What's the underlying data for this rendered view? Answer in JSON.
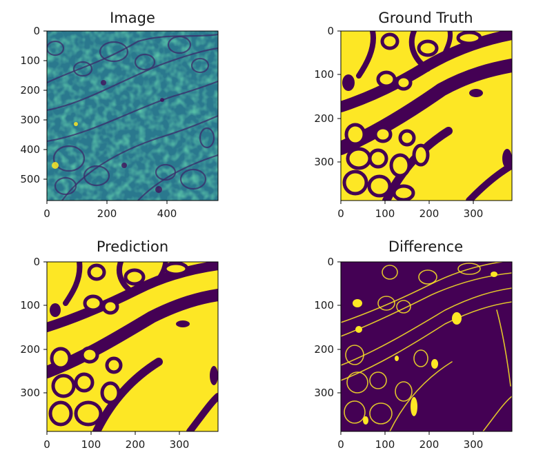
{
  "chart_data": [
    {
      "type": "heatmap",
      "title": "Image",
      "colormap": "viridis",
      "content": "grayscale cell-membrane micrograph",
      "xlim": [
        0,
        570
      ],
      "ylim": [
        570,
        0
      ],
      "xticks": [
        0,
        200,
        400
      ],
      "yticks": [
        0,
        100,
        200,
        300,
        400,
        500
      ],
      "xtick_labels": [
        "0",
        "200",
        "400"
      ],
      "ytick_labels": [
        "0",
        "100",
        "200",
        "300",
        "400",
        "500"
      ]
    },
    {
      "type": "heatmap",
      "title": "Ground Truth",
      "colormap": "viridis",
      "content": "binary segmentation mask",
      "xlim": [
        0,
        388
      ],
      "ylim": [
        388,
        0
      ],
      "xticks": [
        0,
        100,
        200,
        300
      ],
      "yticks": [
        0,
        100,
        200,
        300
      ],
      "xtick_labels": [
        "0",
        "100",
        "200",
        "300"
      ],
      "ytick_labels": [
        "0",
        "100",
        "200",
        "300"
      ]
    },
    {
      "type": "heatmap",
      "title": "Prediction",
      "colormap": "viridis",
      "content": "binary segmentation mask",
      "xlim": [
        0,
        388
      ],
      "ylim": [
        388,
        0
      ],
      "xticks": [
        0,
        100,
        200,
        300
      ],
      "yticks": [
        0,
        100,
        200,
        300
      ],
      "xtick_labels": [
        "0",
        "100",
        "200",
        "300"
      ],
      "ytick_labels": [
        "0",
        "100",
        "200",
        "300"
      ]
    },
    {
      "type": "heatmap",
      "title": "Difference",
      "colormap": "viridis",
      "content": "binary difference mask",
      "xlim": [
        0,
        388
      ],
      "ylim": [
        388,
        0
      ],
      "xticks": [
        0,
        100,
        200,
        300
      ],
      "yticks": [
        0,
        100,
        200,
        300
      ],
      "xtick_labels": [
        "0",
        "100",
        "200",
        "300"
      ],
      "ytick_labels": [
        "0",
        "100",
        "200",
        "300"
      ]
    }
  ],
  "colors": {
    "viridis_low": "#440154",
    "viridis_high": "#fde725",
    "viridis_mid_blue": "#2a788e",
    "viridis_mid_green": "#22a884",
    "axis": "#000000"
  }
}
